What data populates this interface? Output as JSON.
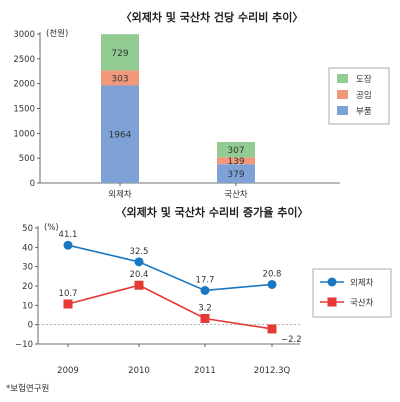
{
  "chart_data": [
    {
      "type": "bar",
      "stacked": true,
      "title": "〈외제차 및 국산차 건당 수리비 추이〉",
      "unit_label": "(천원)",
      "categories": [
        "외제차",
        "국산차"
      ],
      "series": [
        {
          "name": "부품",
          "values": [
            1964,
            379
          ],
          "color": "#7fa2d6"
        },
        {
          "name": "공임",
          "values": [
            303,
            139
          ],
          "color": "#f2987a"
        },
        {
          "name": "도장",
          "values": [
            729,
            307
          ],
          "color": "#93cc93"
        }
      ],
      "ylim": [
        0,
        3000
      ],
      "yticks": [
        "0",
        "500",
        "1000",
        "1500",
        "2000",
        "2500",
        "3000"
      ],
      "legend": "right"
    },
    {
      "type": "line",
      "title": "〈외제차 및 국산차 수리비 증가율 추이〉",
      "unit_label": "(%)",
      "x": [
        "2009",
        "2010",
        "2011",
        "2012.3Q"
      ],
      "series": [
        {
          "name": "외제차",
          "values": [
            41.1,
            32.5,
            17.7,
            20.8
          ],
          "labels": [
            "41.1",
            "32.5",
            "17.7",
            "20.8"
          ],
          "color": "#1a78c2",
          "marker": "circle"
        },
        {
          "name": "국산차",
          "values": [
            10.7,
            20.4,
            3.2,
            -2.2
          ],
          "labels": [
            "10.7",
            "20.4",
            "3.2",
            "−2.2"
          ],
          "color": "#e53935",
          "marker": "square"
        }
      ],
      "ylim": [
        -10,
        50
      ],
      "yticks": [
        "−10",
        "0",
        "10",
        "20",
        "30",
        "40",
        "50"
      ],
      "legend": "right"
    }
  ],
  "source": "*보험연구원"
}
